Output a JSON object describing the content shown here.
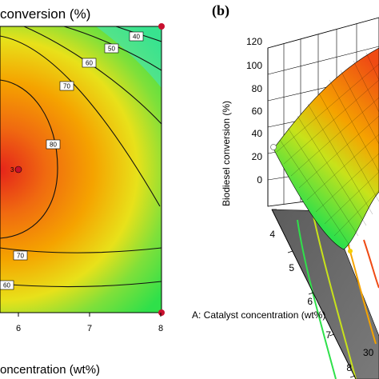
{
  "panel_a": {
    "title": "conversion (%)",
    "xlabel": "oncentration (wt%)",
    "x_ticks": [
      "6",
      "7",
      "8"
    ],
    "contour_levels": [
      "40",
      "50",
      "60",
      "70",
      "80",
      "70",
      "60"
    ],
    "design_point_label": "3"
  },
  "panel_b": {
    "tag": "(b)",
    "zlabel": "Biodiesel conversion (%)",
    "z_ticks": [
      "120",
      "100",
      "80",
      "60",
      "40",
      "20",
      "0"
    ],
    "a_label": "A: Catalyst concentration (wt%)",
    "a_ticks": [
      "4",
      "5",
      "6",
      "7",
      "8"
    ],
    "b_ticks": [
      "30"
    ]
  },
  "colors": {
    "red": "#e5241a",
    "orange": "#f5a300",
    "yellow": "#e8e11a",
    "green": "#2fe04a",
    "cyan": "#3fe6c8",
    "floor": "#6b6b6b"
  },
  "chart_data": [
    {
      "type": "heatmap",
      "title": "conversion (%)",
      "xlabel": "oncentration (wt%)",
      "x_ticks": [
        6,
        7,
        8
      ],
      "contour_levels": [
        40,
        50,
        60,
        70,
        80
      ],
      "center_point": {
        "x": 6,
        "label": "3"
      },
      "legend": "none"
    },
    {
      "type": "surface",
      "zlabel": "Biodiesel conversion (%)",
      "zlim": [
        0,
        120
      ],
      "z_ticks": [
        0,
        20,
        40,
        60,
        80,
        100,
        120
      ],
      "xlabel": "A: Catalyst concentration (wt%)",
      "x_ticks": [
        4,
        5,
        6,
        7,
        8
      ],
      "y_ticks_visible": [
        30
      ]
    }
  ]
}
